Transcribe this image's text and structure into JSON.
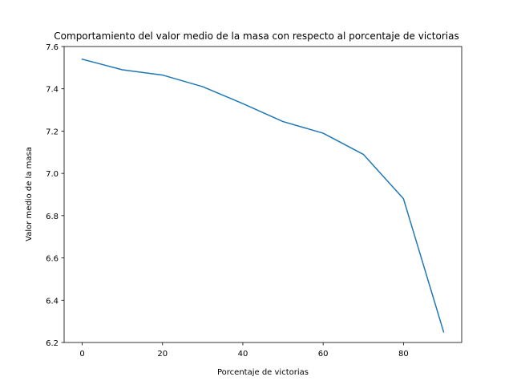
{
  "chart_data": {
    "type": "line",
    "title": "Comportamiento del valor medio de la masa con respecto al porcentaje de victorias",
    "xlabel": "Porcentaje de victorias",
    "ylabel": "Valor medio de la masa",
    "xlim": [
      -4.5,
      94.5
    ],
    "ylim": [
      6.2,
      7.6
    ],
    "xticks": [
      0,
      20,
      40,
      60,
      80
    ],
    "yticks": [
      6.2,
      6.4,
      6.6,
      6.8,
      7.0,
      7.2,
      7.4,
      7.6
    ],
    "xtick_labels": [
      "0",
      "20",
      "40",
      "60",
      "80"
    ],
    "ytick_labels": [
      "6.2",
      "6.4",
      "6.6",
      "6.8",
      "7.0",
      "7.2",
      "7.4",
      "7.6"
    ],
    "grid": false,
    "series": [
      {
        "color": "#1f77b4",
        "x": [
          0,
          10,
          20,
          30,
          40,
          50,
          60,
          70,
          80,
          90
        ],
        "y": [
          7.54,
          7.49,
          7.465,
          7.41,
          7.33,
          7.245,
          7.19,
          7.09,
          6.88,
          6.25
        ]
      }
    ]
  }
}
